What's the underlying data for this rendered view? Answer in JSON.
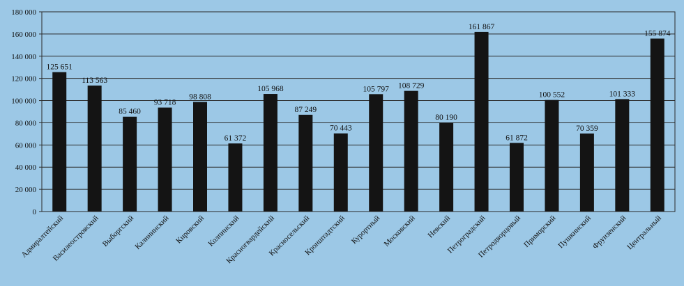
{
  "colors": {
    "background": "#9cc8e6",
    "bar": "#141414",
    "grid": "#2a2a2a",
    "text": "#111111"
  },
  "chart_data": {
    "type": "bar",
    "title": "",
    "xlabel": "",
    "ylabel": "",
    "ylim": [
      0,
      180000
    ],
    "grid": true,
    "legend": "none",
    "yticks": [
      {
        "value": 0,
        "label": "0"
      },
      {
        "value": 20000,
        "label": "20 000"
      },
      {
        "value": 40000,
        "label": "40 000"
      },
      {
        "value": 60000,
        "label": "60 000"
      },
      {
        "value": 80000,
        "label": "80 000"
      },
      {
        "value": 100000,
        "label": "100 000"
      },
      {
        "value": 120000,
        "label": "120 000"
      },
      {
        "value": 140000,
        "label": "140 000"
      },
      {
        "value": 160000,
        "label": "160 000"
      },
      {
        "value": 180000,
        "label": "180 000"
      }
    ],
    "categories": [
      "Адмиралтейский",
      "Василеостровский",
      "Выборгский",
      "Калининский",
      "Кировский",
      "Колпинский",
      "Красногвардейский",
      "Красносельский",
      "Кронштадтский",
      "Курортный",
      "Московский",
      "Невский",
      "Петроградский",
      "Петродворцовый",
      "Приморский",
      "Пушкинский",
      "Фрунзенский",
      "Центральный"
    ],
    "values": [
      125651,
      113563,
      85460,
      93718,
      98808,
      61372,
      105968,
      87249,
      70443,
      105797,
      108729,
      80190,
      161867,
      61872,
      100552,
      70359,
      101333,
      155874
    ],
    "data_labels": [
      "125 651",
      "113 563",
      "85 460",
      "93 718",
      "98 808",
      "61 372",
      "105 968",
      "87 249",
      "70 443",
      "105 797",
      "108 729",
      "80 190",
      "161 867",
      "61 872",
      "100 552",
      "70 359",
      "101 333",
      "155 874"
    ]
  }
}
